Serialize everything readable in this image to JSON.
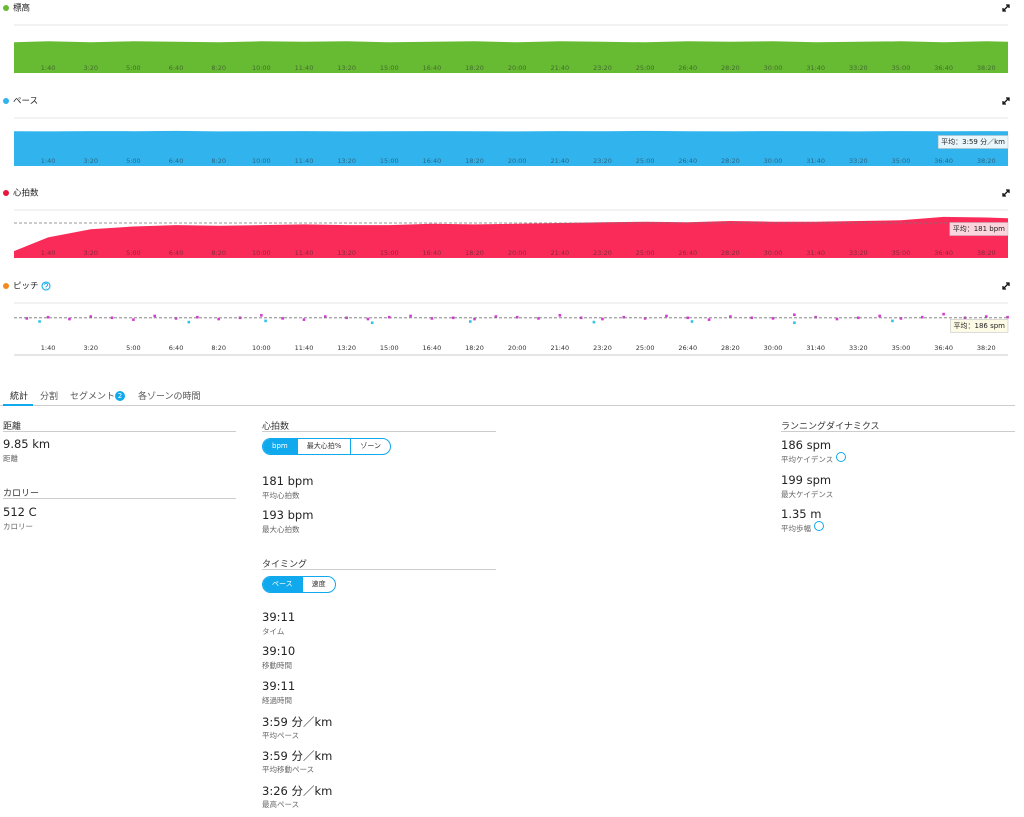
{
  "chart_data": [
    {
      "type": "area",
      "title": "標高",
      "color": "#66bb33",
      "dot_color": "#66bb33",
      "x": [
        20,
        100,
        200,
        300,
        400,
        500,
        600,
        700,
        800,
        900,
        1000,
        1100,
        1200,
        1300,
        1400,
        1500,
        1600,
        1700,
        1800,
        1900,
        2000,
        2100,
        2200,
        2300,
        2351
      ],
      "values": [
        32,
        33,
        32,
        33,
        32.5,
        32,
        33,
        32.5,
        33,
        32,
        32.5,
        33,
        32,
        33,
        32.5,
        32,
        33,
        32.5,
        33,
        32,
        32.5,
        33,
        32,
        33,
        32.5
      ],
      "xlim": [
        20,
        2351
      ],
      "ylim": [
        0,
        50
      ],
      "xticks": [
        {
          "value": 100,
          "label": "1:40"
        },
        {
          "value": 200,
          "label": "3:20"
        },
        {
          "value": 300,
          "label": "5:00"
        },
        {
          "value": 400,
          "label": "6:40"
        },
        {
          "value": 500,
          "label": "8:20"
        },
        {
          "value": 600,
          "label": "10:00"
        },
        {
          "value": 700,
          "label": "11:40"
        },
        {
          "value": 800,
          "label": "13:20"
        },
        {
          "value": 900,
          "label": "15:00"
        },
        {
          "value": 1000,
          "label": "16:40"
        },
        {
          "value": 1100,
          "label": "18:20"
        },
        {
          "value": 1200,
          "label": "20:00"
        },
        {
          "value": 1300,
          "label": "21:40"
        },
        {
          "value": 1400,
          "label": "23:20"
        },
        {
          "value": 1500,
          "label": "25:00"
        },
        {
          "value": 1600,
          "label": "26:40"
        },
        {
          "value": 1700,
          "label": "28:20"
        },
        {
          "value": 1800,
          "label": "30:00"
        },
        {
          "value": 1900,
          "label": "31:40"
        },
        {
          "value": 2000,
          "label": "33:20"
        },
        {
          "value": 2100,
          "label": "35:00"
        },
        {
          "value": 2200,
          "label": "36:40"
        },
        {
          "value": 2300,
          "label": "38:20"
        }
      ]
    },
    {
      "type": "area",
      "title": "ペース",
      "color": "#31b3ee",
      "dot_color": "#31b3ee",
      "x": [
        20,
        100,
        200,
        300,
        400,
        500,
        600,
        700,
        800,
        900,
        1000,
        1100,
        1200,
        1300,
        1400,
        1500,
        1600,
        1700,
        1800,
        1900,
        2000,
        2100,
        2200,
        2300,
        2351
      ],
      "values": [
        239,
        238,
        240,
        239,
        241,
        238,
        239,
        240,
        238,
        239,
        240,
        239,
        238,
        240,
        239,
        241,
        239,
        238,
        240,
        239,
        238,
        240,
        239,
        240,
        239
      ],
      "xlim": [
        20,
        2351
      ],
      "ylim": [
        0,
        330
      ],
      "annotation": "平均：3:59 分／km",
      "xticks": [
        {
          "value": 100,
          "label": "1:40"
        },
        {
          "value": 200,
          "label": "3:20"
        },
        {
          "value": 300,
          "label": "5:00"
        },
        {
          "value": 400,
          "label": "6:40"
        },
        {
          "value": 500,
          "label": "8:20"
        },
        {
          "value": 600,
          "label": "10:00"
        },
        {
          "value": 700,
          "label": "11:40"
        },
        {
          "value": 800,
          "label": "13:20"
        },
        {
          "value": 900,
          "label": "15:00"
        },
        {
          "value": 1000,
          "label": "16:40"
        },
        {
          "value": 1100,
          "label": "18:20"
        },
        {
          "value": 1200,
          "label": "20:00"
        },
        {
          "value": 1300,
          "label": "21:40"
        },
        {
          "value": 1400,
          "label": "23:20"
        },
        {
          "value": 1500,
          "label": "25:00"
        },
        {
          "value": 1600,
          "label": "26:40"
        },
        {
          "value": 1700,
          "label": "28:20"
        },
        {
          "value": 1800,
          "label": "30:00"
        },
        {
          "value": 1900,
          "label": "31:40"
        },
        {
          "value": 2000,
          "label": "33:20"
        },
        {
          "value": 2100,
          "label": "35:00"
        },
        {
          "value": 2200,
          "label": "36:40"
        },
        {
          "value": 2300,
          "label": "38:20"
        }
      ]
    },
    {
      "type": "area",
      "title": "心拍数",
      "color": "#fa2b58",
      "dot_color": "#e8173f",
      "x": [
        20,
        100,
        200,
        300,
        400,
        500,
        600,
        700,
        800,
        900,
        1000,
        1100,
        1200,
        1300,
        1400,
        1500,
        1600,
        1700,
        1800,
        1900,
        2000,
        2100,
        2200,
        2300,
        2351
      ],
      "values": [
        140,
        160,
        172,
        176,
        178,
        177,
        178,
        179,
        178,
        178,
        180,
        179,
        180,
        181,
        182,
        183,
        182,
        184,
        183,
        183,
        184,
        185,
        190,
        189,
        188
      ],
      "xlim": [
        20,
        2351
      ],
      "ylim": [
        130,
        200
      ],
      "average": 181,
      "annotation": "平均：181 bpm",
      "xticks": [
        {
          "value": 100,
          "label": "1:40"
        },
        {
          "value": 200,
          "label": "3:20"
        },
        {
          "value": 300,
          "label": "5:00"
        },
        {
          "value": 400,
          "label": "6:40"
        },
        {
          "value": 500,
          "label": "8:20"
        },
        {
          "value": 600,
          "label": "10:00"
        },
        {
          "value": 700,
          "label": "11:40"
        },
        {
          "value": 800,
          "label": "13:20"
        },
        {
          "value": 900,
          "label": "15:00"
        },
        {
          "value": 1000,
          "label": "16:40"
        },
        {
          "value": 1100,
          "label": "18:20"
        },
        {
          "value": 1200,
          "label": "20:00"
        },
        {
          "value": 1300,
          "label": "21:40"
        },
        {
          "value": 1400,
          "label": "23:20"
        },
        {
          "value": 1500,
          "label": "25:00"
        },
        {
          "value": 1600,
          "label": "26:40"
        },
        {
          "value": 1700,
          "label": "28:20"
        },
        {
          "value": 1800,
          "label": "30:00"
        },
        {
          "value": 1900,
          "label": "31:40"
        },
        {
          "value": 2000,
          "label": "33:20"
        },
        {
          "value": 2100,
          "label": "35:00"
        },
        {
          "value": 2200,
          "label": "36:40"
        },
        {
          "value": 2300,
          "label": "38:20"
        }
      ]
    },
    {
      "type": "scatter",
      "title": "ピッチ",
      "dot_color": "#f5891f",
      "series": [
        {
          "color": "#d63ad6",
          "x": [
            50,
            100,
            150,
            200,
            250,
            300,
            350,
            400,
            450,
            500,
            550,
            600,
            650,
            700,
            750,
            800,
            850,
            900,
            950,
            1000,
            1050,
            1100,
            1150,
            1200,
            1250,
            1300,
            1350,
            1400,
            1450,
            1500,
            1550,
            1600,
            1650,
            1700,
            1750,
            1800,
            1850,
            1900,
            1950,
            2000,
            2050,
            2100,
            2150,
            2200,
            2250,
            2300,
            2350
          ],
          "values": [
            185,
            187,
            184,
            188,
            186,
            183,
            189,
            185,
            187,
            184,
            186,
            190,
            185,
            183,
            188,
            186,
            184,
            187,
            189,
            185,
            186,
            184,
            188,
            187,
            185,
            190,
            186,
            184,
            187,
            185,
            189,
            186,
            183,
            188,
            186,
            185,
            191,
            187,
            184,
            186,
            189,
            185,
            187,
            192,
            186,
            188,
            187
          ]
        },
        {
          "color": "#2ec4e6",
          "x": [
            80,
            430,
            610,
            860,
            1090,
            1380,
            1610,
            1850,
            2080,
            2270
          ],
          "values": [
            180,
            179,
            181,
            178,
            180,
            179,
            180,
            178,
            181,
            180
          ]
        }
      ],
      "xlim": [
        20,
        2351
      ],
      "ylim": [
        150,
        210
      ],
      "average": 186,
      "annotation": "平均：186 spm",
      "xticks": [
        {
          "value": 100,
          "label": "1:40"
        },
        {
          "value": 200,
          "label": "3:20"
        },
        {
          "value": 300,
          "label": "5:00"
        },
        {
          "value": 400,
          "label": "6:40"
        },
        {
          "value": 500,
          "label": "8:20"
        },
        {
          "value": 600,
          "label": "10:00"
        },
        {
          "value": 700,
          "label": "11:40"
        },
        {
          "value": 800,
          "label": "13:20"
        },
        {
          "value": 900,
          "label": "15:00"
        },
        {
          "value": 1000,
          "label": "16:40"
        },
        {
          "value": 1100,
          "label": "18:20"
        },
        {
          "value": 1200,
          "label": "20:00"
        },
        {
          "value": 1300,
          "label": "21:40"
        },
        {
          "value": 1400,
          "label": "23:20"
        },
        {
          "value": 1500,
          "label": "25:00"
        },
        {
          "value": 1600,
          "label": "26:40"
        },
        {
          "value": 1700,
          "label": "28:20"
        },
        {
          "value": 1800,
          "label": "30:00"
        },
        {
          "value": 1900,
          "label": "31:40"
        },
        {
          "value": 2000,
          "label": "33:20"
        },
        {
          "value": 2100,
          "label": "35:00"
        },
        {
          "value": 2200,
          "label": "36:40"
        },
        {
          "value": 2300,
          "label": "38:20"
        }
      ]
    }
  ],
  "tabs": [
    "統計",
    "分割",
    "セグメント",
    "各ゾーンの時間"
  ],
  "segment_badge": 2,
  "distance": {
    "title": "距離",
    "items": [
      {
        "value": "9.85 km",
        "label": "距離"
      }
    ]
  },
  "calories": {
    "title": "カロリー",
    "items": [
      {
        "value": "512 C",
        "label": "カロリー"
      }
    ]
  },
  "heart_rate": {
    "title": "心拍数",
    "toggle": [
      "bpm",
      "最大心拍%",
      "ゾーン"
    ],
    "items": [
      {
        "value": "181 bpm",
        "label": "平均心拍数"
      },
      {
        "value": "193 bpm",
        "label": "最大心拍数"
      }
    ]
  },
  "timing": {
    "title": "タイミング",
    "toggle": [
      "ペース",
      "速度"
    ],
    "items": [
      {
        "value": "39:11",
        "label": "タイム"
      },
      {
        "value": "39:10",
        "label": "移動時間"
      },
      {
        "value": "39:11",
        "label": "経過時間"
      },
      {
        "value": "3:59 分／km",
        "label": "平均ペース"
      },
      {
        "value": "3:59 分／km",
        "label": "平均移動ペース"
      },
      {
        "value": "3:26 分／km",
        "label": "最高ペース"
      }
    ]
  },
  "running_dynamics": {
    "title": "ランニングダイナミクス",
    "items": [
      {
        "value": "186 spm",
        "label": "平均ケイデンス"
      },
      {
        "value": "199 spm",
        "label": "最大ケイデンス"
      },
      {
        "value": "1.35 m",
        "label": "平均歩幅"
      }
    ]
  }
}
